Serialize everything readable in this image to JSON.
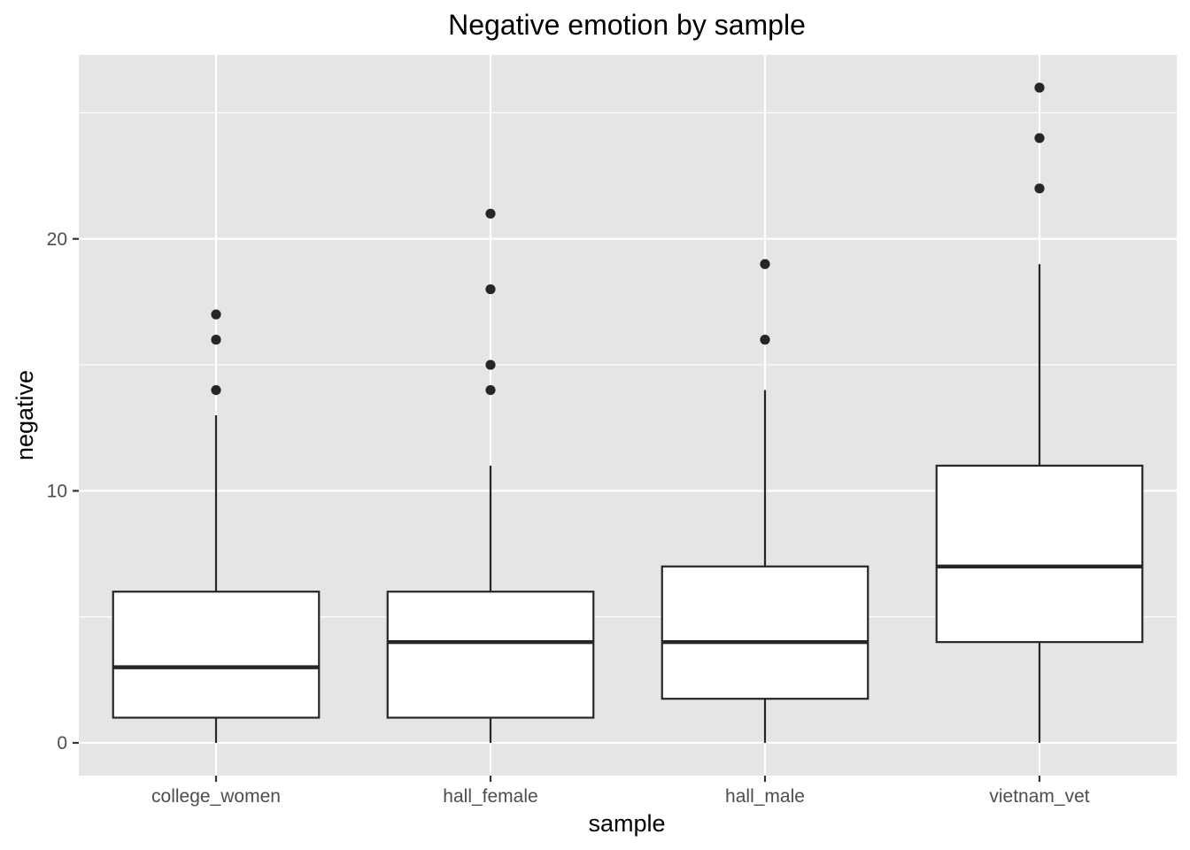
{
  "chart_data": {
    "type": "boxplot",
    "title": "Negative emotion by sample",
    "xlabel": "sample",
    "ylabel": "negative",
    "categories": [
      "college_women",
      "hall_female",
      "hall_male",
      "vietnam_vet"
    ],
    "ylim": [
      -1.3,
      27.3
    ],
    "yticks": [
      0,
      10,
      20
    ],
    "grid": true,
    "panel_background": "#e5e5e5",
    "grid_color": "#ffffff",
    "box_fill": "#ffffff",
    "line_color": "#262626",
    "boxes": [
      {
        "category": "college_women",
        "whisker_low": 0,
        "q1": 1,
        "median": 3,
        "q3": 6,
        "whisker_high": 13,
        "outliers": [
          14,
          16,
          17
        ]
      },
      {
        "category": "hall_female",
        "whisker_low": 0,
        "q1": 1,
        "median": 4,
        "q3": 6,
        "whisker_high": 11,
        "outliers": [
          14,
          15,
          18,
          21
        ]
      },
      {
        "category": "hall_male",
        "whisker_low": 0,
        "q1": 1.75,
        "median": 4,
        "q3": 7,
        "whisker_high": 14,
        "outliers": [
          16,
          19
        ]
      },
      {
        "category": "vietnam_vet",
        "whisker_low": 0,
        "q1": 4,
        "median": 7,
        "q3": 11,
        "whisker_high": 19,
        "outliers": [
          22,
          24,
          26
        ]
      }
    ]
  }
}
